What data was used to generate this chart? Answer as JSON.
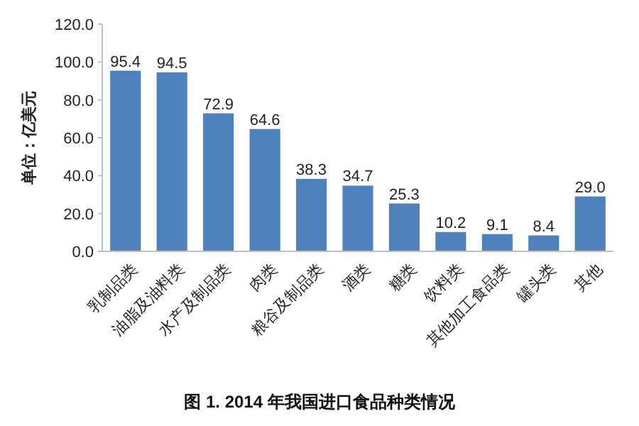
{
  "chart_data": {
    "type": "bar",
    "title": "图 1. 2014 年我国进口食品种类情况",
    "ylabel": "单位：亿美元",
    "categories": [
      "乳制品类",
      "油脂及油料类",
      "水产及制品类",
      "肉类",
      "粮谷及制品类",
      "酒类",
      "糖类",
      "饮料类",
      "其他加工食品类",
      "罐头类",
      "其他"
    ],
    "values": [
      95.4,
      94.5,
      72.9,
      64.6,
      38.3,
      34.7,
      25.3,
      10.2,
      9.1,
      8.4,
      29.0
    ],
    "value_labels": [
      "95.4",
      "94.5",
      "72.9",
      "64.6",
      "38.3",
      "34.7",
      "25.3",
      "10.2",
      "9.1",
      "8.4",
      "29.0"
    ],
    "color": "#4f81bd",
    "ylim": [
      0,
      120
    ],
    "yticks": [
      {
        "value": 0,
        "label": "0.0"
      },
      {
        "value": 20,
        "label": "20.0"
      },
      {
        "value": 40,
        "label": "40.0"
      },
      {
        "value": 60,
        "label": "60.0"
      },
      {
        "value": 80,
        "label": "80.0"
      },
      {
        "value": 100,
        "label": "100.0"
      },
      {
        "value": 120,
        "label": "120.0"
      }
    ],
    "grid": false,
    "legend": false
  }
}
